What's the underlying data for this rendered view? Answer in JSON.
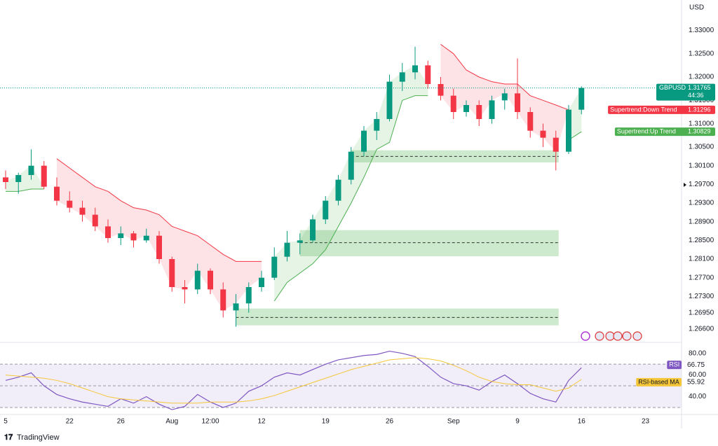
{
  "chart_data": [
    {
      "type": "candlestick",
      "currency": "USD",
      "countdown": "44:36",
      "categories": [
        "5",
        null,
        null,
        null,
        null,
        "22",
        null,
        null,
        null,
        "26",
        null,
        null,
        null,
        "Aug",
        null,
        null,
        "12:00",
        null,
        null,
        null,
        "12",
        null,
        null,
        null,
        null,
        "19",
        null,
        null,
        null,
        null,
        "26",
        null,
        null,
        null,
        null,
        "Sep",
        null,
        null,
        null,
        null,
        "9",
        null,
        null,
        null,
        null,
        "16",
        null,
        null,
        null,
        null,
        "23",
        null,
        null
      ],
      "candles": {
        "name": "GBPUSD",
        "up_color": "#089981",
        "down_color": "#f23645",
        "open": [
          1.2985,
          1.2975,
          1.299,
          1.301,
          1.2965,
          1.2935,
          1.292,
          1.2905,
          1.288,
          1.2855,
          1.2865,
          1.285,
          1.286,
          1.281,
          1.275,
          1.2745,
          1.2785,
          1.2745,
          1.27,
          1.2715,
          1.275,
          1.277,
          1.2815,
          1.2845,
          1.285,
          1.2895,
          1.2935,
          1.298,
          1.304,
          1.3085,
          1.311,
          1.319,
          1.321,
          1.3225,
          1.3185,
          1.316,
          1.3125,
          1.314,
          1.311,
          1.315,
          1.3165,
          1.3125,
          1.3085,
          1.307,
          1.304,
          1.313,
          null,
          null,
          null,
          null,
          null,
          null,
          null
        ],
        "high": [
          1.3,
          1.2995,
          1.3045,
          1.302,
          1.2985,
          1.2955,
          1.2935,
          1.292,
          1.2895,
          1.288,
          1.287,
          1.2875,
          1.287,
          1.2815,
          1.2765,
          1.28,
          1.279,
          1.276,
          1.2735,
          1.276,
          1.2785,
          1.2835,
          1.287,
          1.2865,
          1.2905,
          1.2945,
          1.299,
          1.305,
          1.3095,
          1.3125,
          1.3205,
          1.323,
          1.3265,
          1.3235,
          1.32,
          1.3175,
          1.315,
          1.315,
          1.316,
          1.3175,
          1.324,
          1.3135,
          1.31,
          1.3085,
          1.314,
          1.318,
          null,
          null,
          null,
          null,
          null,
          null,
          null
        ],
        "low": [
          1.296,
          1.295,
          1.298,
          1.296,
          1.2925,
          1.291,
          1.289,
          1.287,
          1.2845,
          1.284,
          1.2835,
          1.2845,
          1.28,
          1.274,
          1.2715,
          1.2735,
          1.2735,
          1.2685,
          1.2665,
          1.2695,
          1.274,
          1.2765,
          1.2805,
          1.282,
          1.2845,
          1.2885,
          1.2925,
          1.297,
          1.303,
          1.3065,
          1.3105,
          1.317,
          1.3195,
          1.3175,
          1.315,
          1.311,
          1.3115,
          1.3095,
          1.31,
          1.313,
          1.311,
          1.307,
          1.305,
          1.3,
          1.3035,
          1.312,
          null,
          null,
          null,
          null,
          null,
          null,
          null
        ],
        "close": [
          1.2975,
          1.299,
          1.301,
          1.2965,
          1.2935,
          1.292,
          1.2905,
          1.288,
          1.2855,
          1.2865,
          1.285,
          1.286,
          1.281,
          1.275,
          1.2745,
          1.2785,
          1.2745,
          1.27,
          1.2715,
          1.275,
          1.277,
          1.2815,
          1.2845,
          1.285,
          1.2895,
          1.2935,
          1.298,
          1.304,
          1.3085,
          1.311,
          1.319,
          1.321,
          1.3225,
          1.3185,
          1.316,
          1.3125,
          1.314,
          1.311,
          1.315,
          1.3165,
          1.3125,
          1.3085,
          1.307,
          1.304,
          1.313,
          1.31765,
          null,
          null,
          null,
          null,
          null,
          null,
          null
        ]
      },
      "series": [
        {
          "name": "Supertrend:Down Trend",
          "color": "#f23645",
          "fill": "rgba(242,54,69,0.14)",
          "values": [
            null,
            null,
            null,
            null,
            1.3025,
            1.3005,
            1.2985,
            1.2965,
            1.2955,
            1.2935,
            1.292,
            1.2915,
            1.2905,
            1.288,
            1.287,
            1.286,
            1.284,
            1.282,
            1.2805,
            1.2805,
            1.2805,
            null,
            null,
            null,
            null,
            null,
            null,
            null,
            null,
            null,
            null,
            null,
            null,
            null,
            1.327,
            1.325,
            1.3215,
            1.32,
            1.319,
            1.3185,
            1.3185,
            1.316,
            1.315,
            1.314,
            1.31296,
            null,
            null,
            null,
            null,
            null,
            null,
            null,
            null
          ]
        },
        {
          "name": "Supertrend:Up Trend",
          "color": "#4caf50",
          "fill": "rgba(76,175,80,0.14)",
          "values": [
            1.2955,
            1.2955,
            1.296,
            1.296,
            null,
            null,
            null,
            null,
            null,
            null,
            null,
            null,
            null,
            null,
            null,
            null,
            null,
            null,
            null,
            null,
            null,
            1.272,
            1.276,
            1.278,
            1.28,
            1.283,
            1.288,
            1.293,
            1.2985,
            1.3045,
            1.306,
            1.315,
            1.316,
            1.316,
            null,
            null,
            null,
            null,
            null,
            null,
            null,
            null,
            null,
            null,
            1.3065,
            1.30829,
            null,
            null,
            null,
            null,
            null,
            null,
            null
          ]
        }
      ],
      "zones": [
        {
          "top": 1.3043,
          "bottom": 1.3017,
          "mid": 1.303,
          "start": 27,
          "end": 43
        },
        {
          "top": 1.2872,
          "bottom": 1.2816,
          "mid": 1.2845,
          "start": 23,
          "end": 43
        },
        {
          "top": 1.2704,
          "bottom": 1.2668,
          "mid": 1.2685,
          "start": 18,
          "end": 43
        }
      ],
      "zone_color": "rgba(76,175,80,0.28)",
      "ylim": [
        1.2633,
        1.3365
      ],
      "yticks": [
        {
          "value": 1.33,
          "label": "1.33000"
        },
        {
          "value": 1.325,
          "label": "1.32500"
        },
        {
          "value": 1.32,
          "label": "1.32000"
        },
        {
          "value": 1.315,
          "label": "1.31500"
        },
        {
          "value": 1.31,
          "label": "1.31000"
        },
        {
          "value": 1.305,
          "label": "1.30500"
        },
        {
          "value": 1.301,
          "label": "1.30100"
        },
        {
          "value": 1.297,
          "label": "1.29700"
        },
        {
          "value": 1.293,
          "label": "1.29300"
        },
        {
          "value": 1.289,
          "label": "1.28900"
        },
        {
          "value": 1.285,
          "label": "1.28500"
        },
        {
          "value": 1.281,
          "label": "1.28100"
        },
        {
          "value": 1.277,
          "label": "1.27700"
        },
        {
          "value": 1.273,
          "label": "1.27300"
        },
        {
          "value": 1.2695,
          "label": "1.26950"
        },
        {
          "value": 1.266,
          "label": "1.26600"
        }
      ],
      "grid": false
    },
    {
      "type": "line",
      "series": [
        {
          "name": "RSI",
          "color": "#7e57c2",
          "values": [
            55,
            58,
            62,
            50,
            42,
            38,
            35,
            33,
            31,
            38,
            34,
            40,
            33,
            28,
            31,
            42,
            35,
            30,
            34,
            45,
            50,
            58,
            62,
            60,
            65,
            70,
            74,
            76,
            78,
            79,
            82,
            80,
            77,
            68,
            58,
            52,
            50,
            46,
            54,
            60,
            52,
            43,
            38,
            35,
            55,
            66.75,
            null,
            null,
            null,
            null,
            null,
            null,
            null
          ]
        },
        {
          "name": "RSI-based MA",
          "color": "#f5c638",
          "values": [
            60,
            59,
            58,
            57,
            55,
            52,
            48,
            44,
            40,
            38,
            37,
            36,
            35,
            34,
            34,
            34,
            35,
            35,
            35,
            36,
            38,
            41,
            45,
            49,
            53,
            57,
            61,
            65,
            68,
            71,
            74,
            75,
            76,
            75,
            73,
            69,
            64,
            58,
            54,
            52,
            51,
            51,
            48,
            45,
            48,
            55.92,
            null,
            null,
            null,
            null,
            null,
            null,
            null
          ]
        }
      ],
      "levels": [
        70,
        50,
        30
      ],
      "band_color": "rgba(126,87,194,0.1)",
      "ylim": [
        23.5,
        89.5
      ],
      "yticks": [
        {
          "value": 80,
          "label": "80.00"
        },
        {
          "value": 60,
          "label": "60.00"
        },
        {
          "value": 40,
          "label": "40.00"
        }
      ]
    }
  ],
  "branding": "TradingView"
}
